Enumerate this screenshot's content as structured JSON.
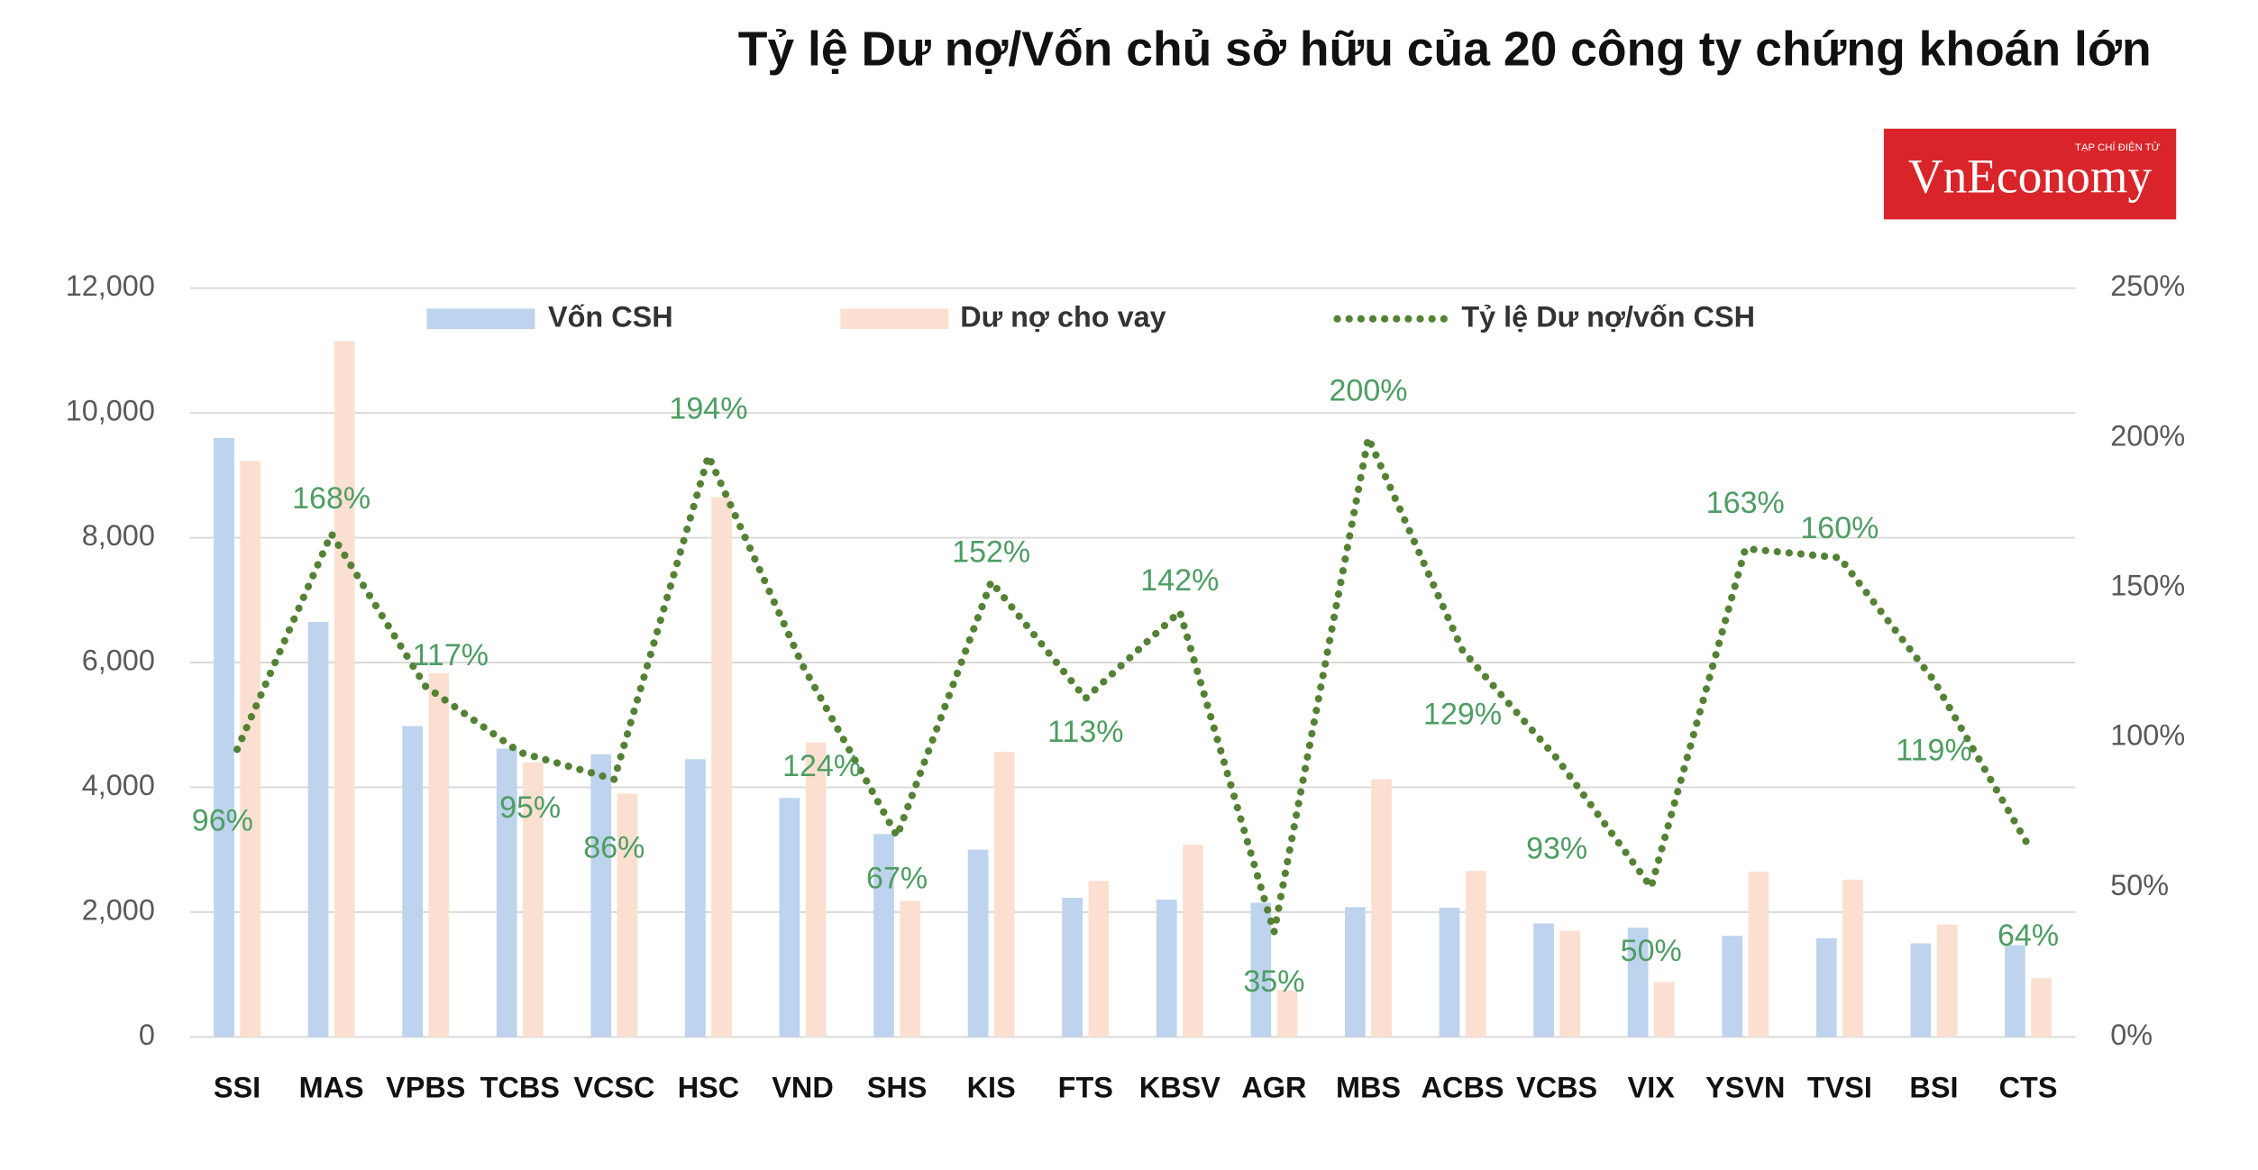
{
  "chart_data": {
    "type": "bar",
    "title": "Tỷ lệ Dư nợ/Vốn chủ sở hữu của 20 công ty chứng khoán lớn",
    "logo": {
      "text": "VnEconomy",
      "tagline": "TẠP CHÍ ĐIỆN TỬ"
    },
    "categories": [
      "SSI",
      "MAS",
      "VPBS",
      "TCBS",
      "VCSC",
      "HSC",
      "VND",
      "SHS",
      "KIS",
      "FTS",
      "KBSV",
      "AGR",
      "MBS",
      "ACBS",
      "VCBS",
      "VIX",
      "YSVN",
      "TVSI",
      "BSI",
      "CTS"
    ],
    "series": [
      {
        "name": "Vốn CSH",
        "type": "bar",
        "color": "#bdd3ee",
        "values": [
          9600,
          6650,
          4980,
          4620,
          4530,
          4450,
          3830,
          3250,
          3000,
          2230,
          2200,
          2150,
          2080,
          2070,
          1820,
          1750,
          1620,
          1580,
          1500,
          1470
        ]
      },
      {
        "name": "Dư nợ cho vay",
        "type": "bar",
        "color": "#fbe0d1",
        "values": [
          9230,
          11150,
          5830,
          4400,
          3900,
          8650,
          4720,
          2180,
          4570,
          2500,
          3080,
          750,
          4130,
          2660,
          1700,
          880,
          2650,
          2520,
          1800,
          940
        ]
      },
      {
        "name": "Tỷ lệ Dư nợ/vốn CSH",
        "type": "line",
        "axis": "y2",
        "color": "#548235",
        "values": [
          96,
          168,
          117,
          95,
          86,
          194,
          124,
          67,
          152,
          113,
          142,
          35,
          200,
          129,
          93,
          50,
          163,
          160,
          119,
          64
        ],
        "value_labels": [
          "96%",
          "168%",
          "117%",
          "95%",
          "86%",
          "194%",
          "124%",
          "67%",
          "152%",
          "113%",
          "142%",
          "35%",
          "200%",
          "129%",
          "93%",
          "50%",
          "163%",
          "160%",
          "119%",
          "64%"
        ]
      }
    ],
    "ylim": [
      0,
      12000
    ],
    "yticks": [
      0,
      {
        "value": 2000,
        "label": "2,000"
      },
      {
        "value": 4000,
        "label": "4,000"
      },
      {
        "value": 6000,
        "label": "6,000"
      },
      {
        "value": 8000,
        "label": "8,000"
      },
      {
        "value": 10000,
        "label": "10,000"
      },
      {
        "value": 12000,
        "label": "12,000"
      }
    ],
    "y2lim": [
      0,
      250
    ],
    "y2ticks": [
      {
        "value": 0,
        "label": "0%"
      },
      {
        "value": 50,
        "label": "50%"
      },
      {
        "value": 100,
        "label": "100%"
      },
      {
        "value": 150,
        "label": "150%"
      },
      {
        "value": 200,
        "label": "200%"
      },
      {
        "value": 250,
        "label": "250%"
      }
    ],
    "grid": true,
    "legend": "top"
  }
}
